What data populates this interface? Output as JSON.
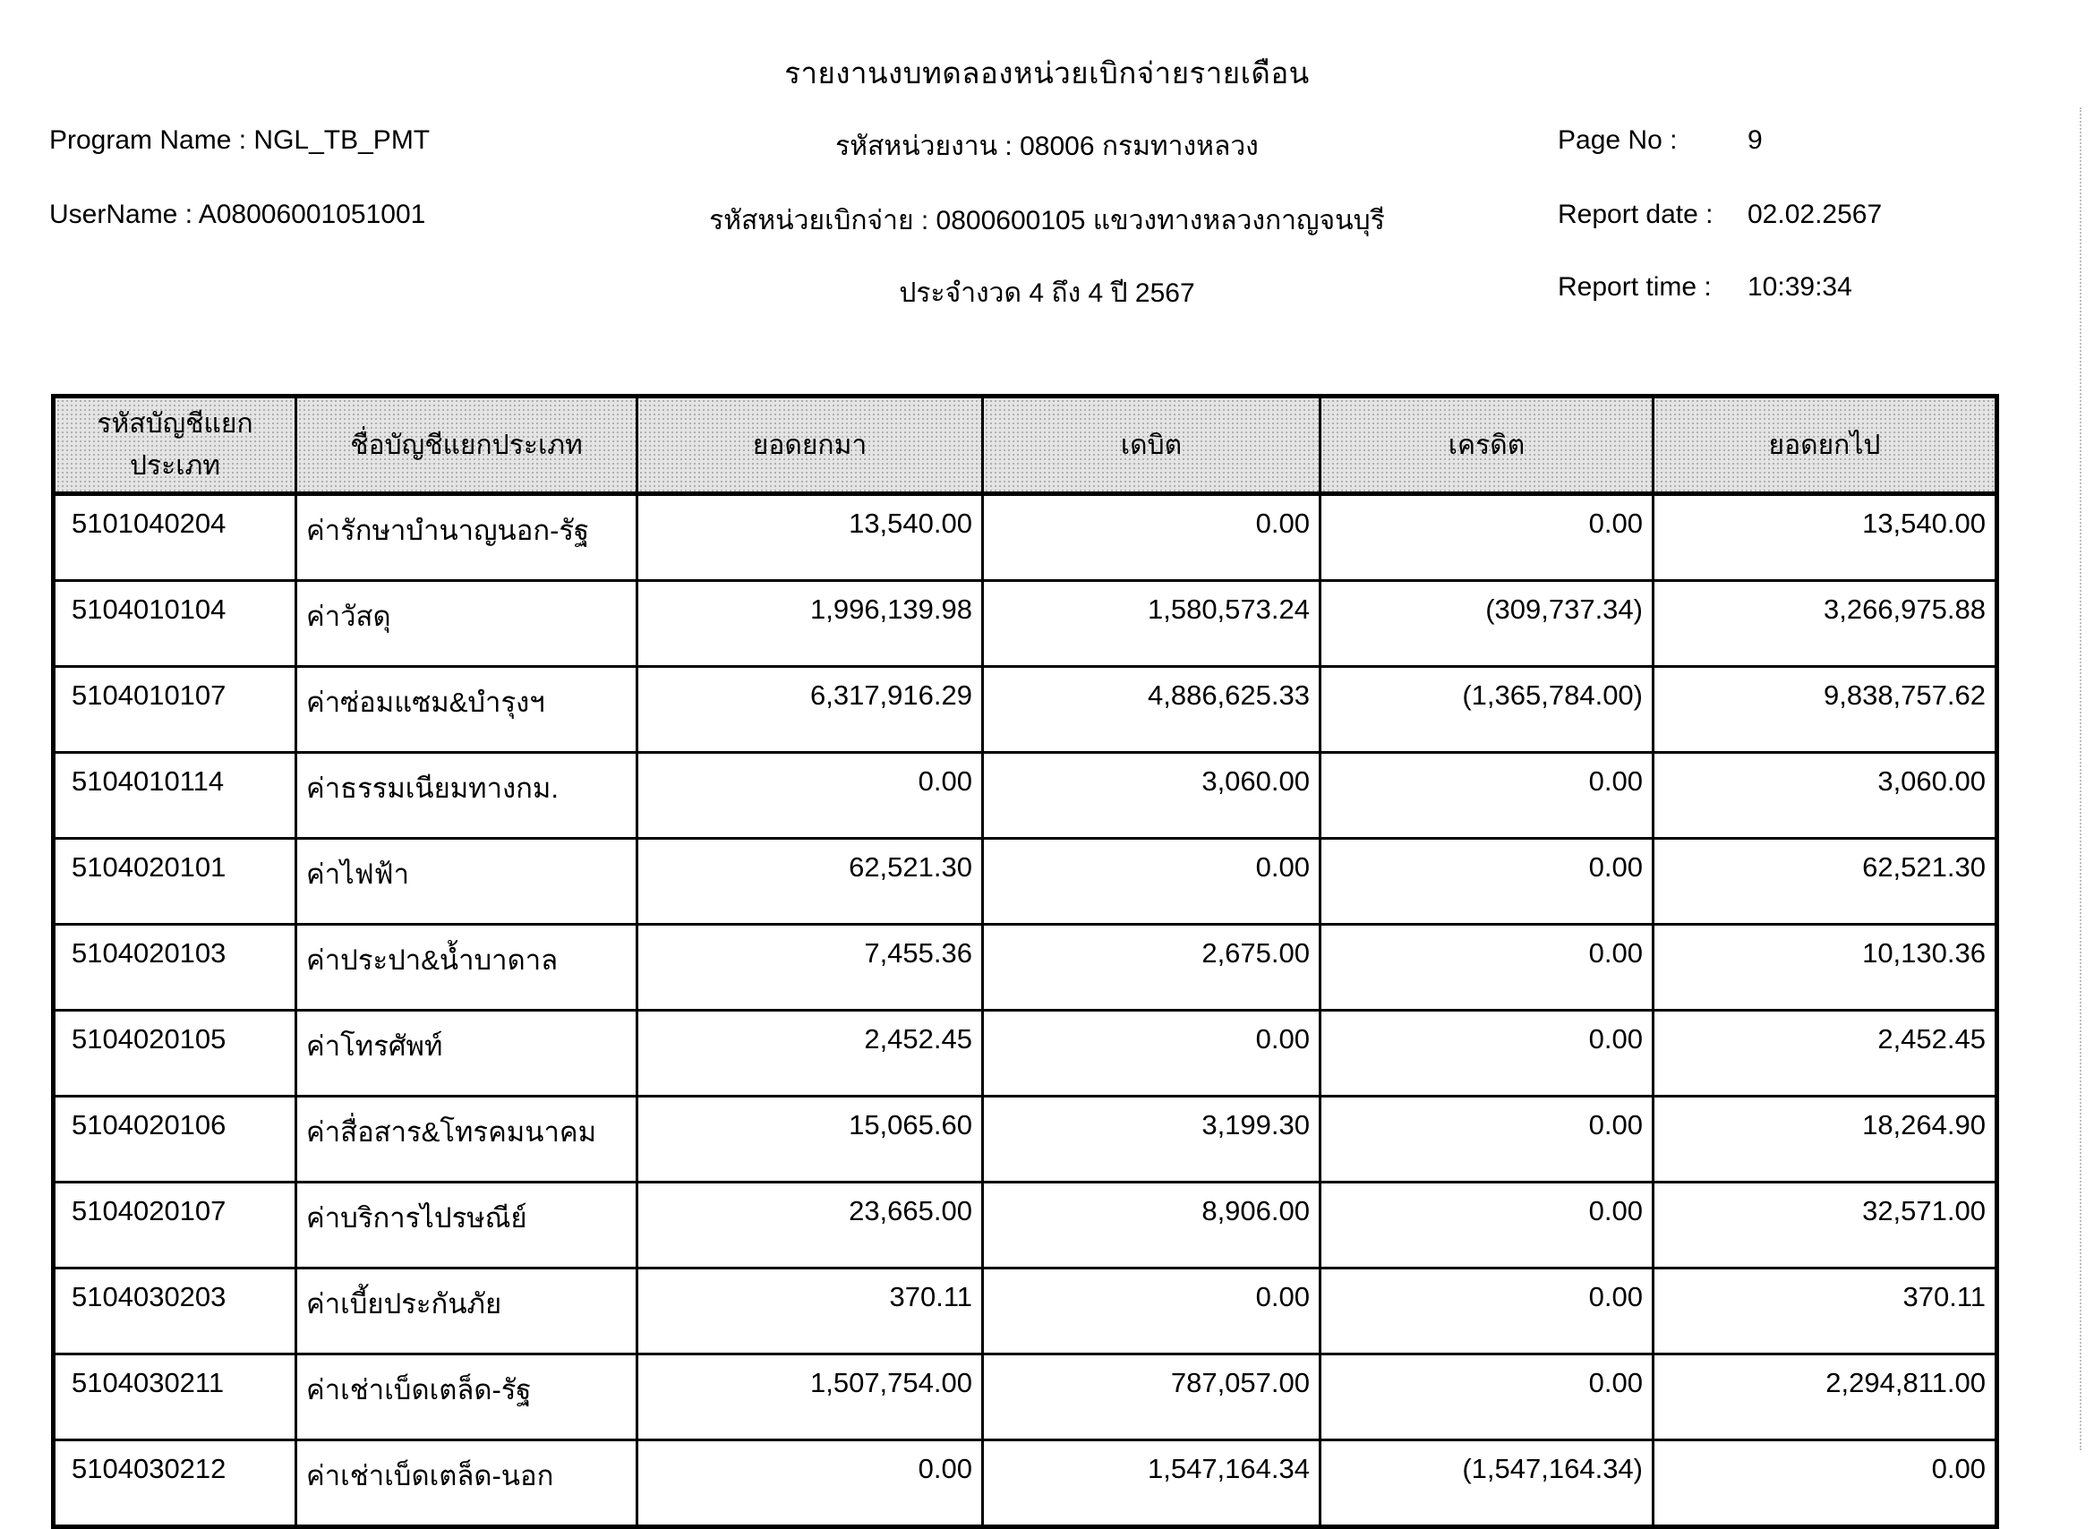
{
  "report": {
    "title": "รายงานงบทดลองหน่วยเบิกจ่ายรายเดือน",
    "program_name_label": "Program Name :",
    "program_name": "NGL_TB_PMT",
    "username_label": "UserName :",
    "username": "A08006001051001",
    "agency_line": "รหัสหน่วยงาน : 08006 กรมทางหลวง",
    "disbursement_unit_line": "รหัสหน่วยเบิกจ่าย : 0800600105 แขวงทางหลวงกาญจนบุรี",
    "period_line": "ประจำงวด 4 ถึง 4 ปี 2567",
    "page_no_label": "Page No :",
    "page_no": "9",
    "report_date_label": "Report date :",
    "report_date": "02.02.2567",
    "report_time_label": "Report time :",
    "report_time": "10:39:34"
  },
  "table": {
    "headers": [
      "รหัสบัญชีแยกประเภท",
      "ชื่อบัญชีแยกประเภท",
      "ยอดยกมา",
      "เดบิต",
      "เครดิต",
      "ยอดยกไป"
    ],
    "rows": [
      [
        "5101040204",
        "ค่ารักษาบำนาญนอก-รัฐ",
        "13,540.00",
        "0.00",
        "0.00",
        "13,540.00"
      ],
      [
        "5104010104",
        "ค่าวัสดุ",
        "1,996,139.98",
        "1,580,573.24",
        "(309,737.34)",
        "3,266,975.88"
      ],
      [
        "5104010107",
        "ค่าซ่อมแซม&บำรุงฯ",
        "6,317,916.29",
        "4,886,625.33",
        "(1,365,784.00)",
        "9,838,757.62"
      ],
      [
        "5104010114",
        "ค่าธรรมเนียมทางกม.",
        "0.00",
        "3,060.00",
        "0.00",
        "3,060.00"
      ],
      [
        "5104020101",
        "ค่าไฟฟ้า",
        "62,521.30",
        "0.00",
        "0.00",
        "62,521.30"
      ],
      [
        "5104020103",
        "ค่าประปา&น้ำบาดาล",
        "7,455.36",
        "2,675.00",
        "0.00",
        "10,130.36"
      ],
      [
        "5104020105",
        "ค่าโทรศัพท์",
        "2,452.45",
        "0.00",
        "0.00",
        "2,452.45"
      ],
      [
        "5104020106",
        "ค่าสื่อสาร&โทรคมนาคม",
        "15,065.60",
        "3,199.30",
        "0.00",
        "18,264.90"
      ],
      [
        "5104020107",
        "ค่าบริการไปรษณีย์",
        "23,665.00",
        "8,906.00",
        "0.00",
        "32,571.00"
      ],
      [
        "5104030203",
        "ค่าเบี้ยประกันภัย",
        "370.11",
        "0.00",
        "0.00",
        "370.11"
      ],
      [
        "5104030211",
        "ค่าเช่าเบ็ดเตล็ด-รัฐ",
        "1,507,754.00",
        "787,057.00",
        "0.00",
        "2,294,811.00"
      ],
      [
        "5104030212",
        "ค่าเช่าเบ็ดเตล็ด-นอก",
        "0.00",
        "1,547,164.34",
        "(1,547,164.34)",
        "0.00"
      ]
    ]
  }
}
